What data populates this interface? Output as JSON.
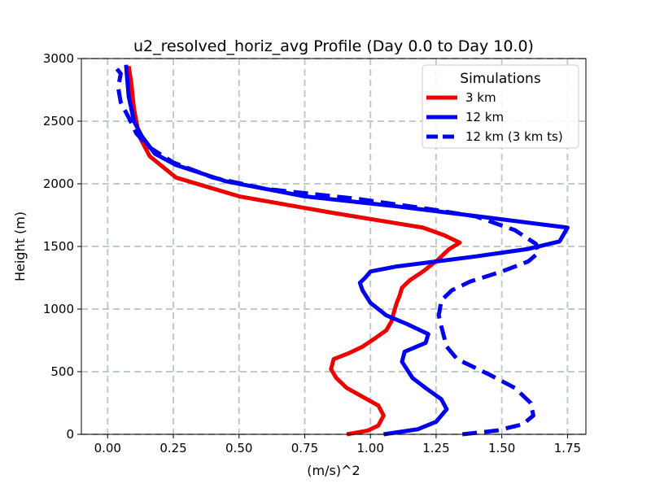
{
  "chart_data": {
    "type": "line",
    "title": "u2_resolved_horiz_avg Profile (Day 0.0 to Day 10.0)",
    "xlabel": "(m/s)^2",
    "ylabel": "Height (m)",
    "xlim": [
      -0.1,
      1.82
    ],
    "ylim": [
      0,
      3000
    ],
    "xticks": [
      0.0,
      0.25,
      0.5,
      0.75,
      1.0,
      1.25,
      1.5,
      1.75
    ],
    "xtick_labels": [
      "0.00",
      "0.25",
      "0.50",
      "0.75",
      "1.00",
      "1.25",
      "1.50",
      "1.75"
    ],
    "yticks": [
      0,
      500,
      1000,
      1500,
      2000,
      2500,
      3000
    ],
    "ytick_labels": [
      "0",
      "500",
      "1000",
      "1500",
      "2000",
      "2500",
      "3000"
    ],
    "grid": true,
    "legend": {
      "title": "Simulations",
      "placement": "top-right"
    },
    "series": [
      {
        "name": "3 km",
        "color": "#ee0000",
        "style": "solid",
        "points": [
          [
            0.91,
            0
          ],
          [
            0.99,
            30
          ],
          [
            1.03,
            70
          ],
          [
            1.05,
            150
          ],
          [
            1.03,
            230
          ],
          [
            0.97,
            300
          ],
          [
            0.91,
            370
          ],
          [
            0.87,
            450
          ],
          [
            0.85,
            520
          ],
          [
            0.86,
            600
          ],
          [
            0.92,
            650
          ],
          [
            0.97,
            700
          ],
          [
            1.02,
            770
          ],
          [
            1.06,
            830
          ],
          [
            1.08,
            900
          ],
          [
            1.09,
            980
          ],
          [
            1.1,
            1050
          ],
          [
            1.11,
            1100
          ],
          [
            1.12,
            1170
          ],
          [
            1.15,
            1230
          ],
          [
            1.2,
            1300
          ],
          [
            1.26,
            1400
          ],
          [
            1.3,
            1480
          ],
          [
            1.34,
            1530
          ],
          [
            1.28,
            1590
          ],
          [
            1.2,
            1650
          ],
          [
            0.85,
            1770
          ],
          [
            0.5,
            1900
          ],
          [
            0.26,
            2050
          ],
          [
            0.16,
            2220
          ],
          [
            0.12,
            2380
          ],
          [
            0.1,
            2600
          ],
          [
            0.09,
            2800
          ],
          [
            0.08,
            2940
          ]
        ]
      },
      {
        "name": "12 km",
        "color": "#0000ee",
        "style": "solid",
        "points": [
          [
            1.05,
            0
          ],
          [
            1.18,
            40
          ],
          [
            1.25,
            100
          ],
          [
            1.29,
            200
          ],
          [
            1.27,
            280
          ],
          [
            1.21,
            370
          ],
          [
            1.16,
            450
          ],
          [
            1.12,
            580
          ],
          [
            1.13,
            660
          ],
          [
            1.21,
            730
          ],
          [
            1.22,
            800
          ],
          [
            1.14,
            880
          ],
          [
            1.06,
            950
          ],
          [
            1.0,
            1050
          ],
          [
            0.97,
            1150
          ],
          [
            0.96,
            1210
          ],
          [
            0.98,
            1250
          ],
          [
            1.0,
            1300
          ],
          [
            1.1,
            1340
          ],
          [
            1.25,
            1380
          ],
          [
            1.4,
            1420
          ],
          [
            1.6,
            1480
          ],
          [
            1.72,
            1540
          ],
          [
            1.75,
            1650
          ],
          [
            1.45,
            1730
          ],
          [
            1.1,
            1820
          ],
          [
            0.75,
            1900
          ],
          [
            0.45,
            2020
          ],
          [
            0.26,
            2150
          ],
          [
            0.18,
            2240
          ],
          [
            0.13,
            2380
          ],
          [
            0.1,
            2500
          ],
          [
            0.08,
            2700
          ],
          [
            0.07,
            2950
          ]
        ]
      },
      {
        "name": "12 km (3 km ts)",
        "color": "#0000ee",
        "style": "dashed",
        "points": [
          [
            1.35,
            0
          ],
          [
            1.48,
            30
          ],
          [
            1.58,
            80
          ],
          [
            1.62,
            150
          ],
          [
            1.61,
            250
          ],
          [
            1.55,
            370
          ],
          [
            1.45,
            480
          ],
          [
            1.33,
            600
          ],
          [
            1.29,
            700
          ],
          [
            1.28,
            780
          ],
          [
            1.27,
            860
          ],
          [
            1.26,
            950
          ],
          [
            1.27,
            1070
          ],
          [
            1.31,
            1150
          ],
          [
            1.38,
            1220
          ],
          [
            1.5,
            1300
          ],
          [
            1.6,
            1380
          ],
          [
            1.64,
            1450
          ],
          [
            1.63,
            1520
          ],
          [
            1.55,
            1630
          ],
          [
            1.4,
            1740
          ],
          [
            1.22,
            1800
          ],
          [
            0.95,
            1880
          ],
          [
            0.6,
            1960
          ],
          [
            0.4,
            2050
          ],
          [
            0.25,
            2170
          ],
          [
            0.16,
            2290
          ],
          [
            0.11,
            2400
          ],
          [
            0.08,
            2530
          ],
          [
            0.05,
            2650
          ],
          [
            0.04,
            2770
          ],
          [
            0.05,
            2880
          ],
          [
            0.03,
            2930
          ]
        ]
      }
    ]
  }
}
